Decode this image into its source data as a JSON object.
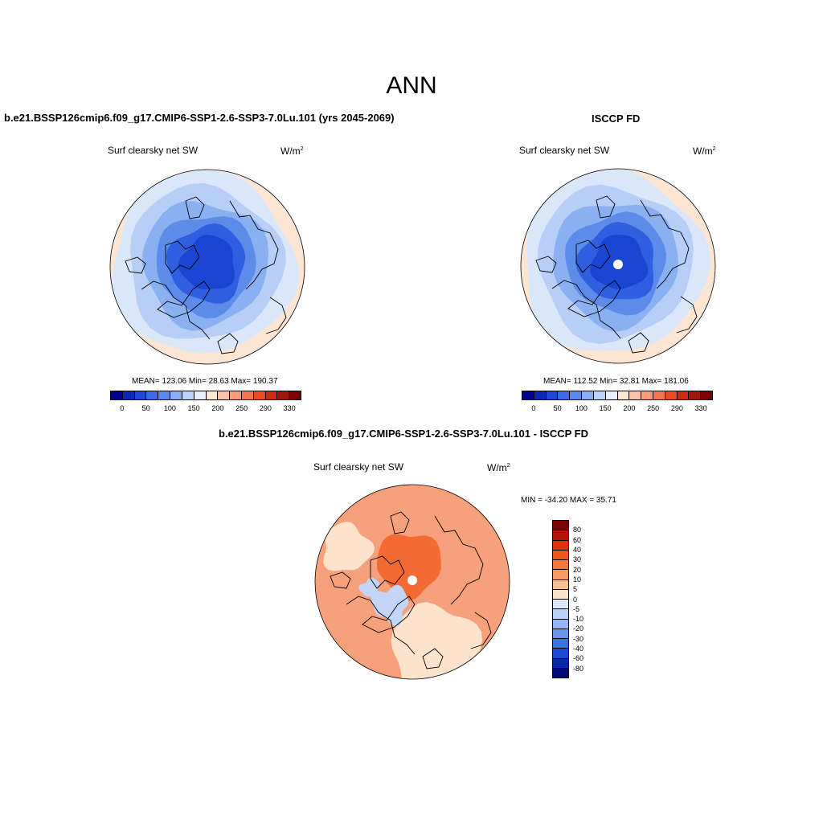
{
  "main_title": "ANN",
  "panels": [
    {
      "title": "b.e21.BSSP126cmip6.f09_g17.CMIP6-SSP1-2.6-SSP3-7.0Lu.101 (yrs 2045-2069)",
      "variable": "Surf clearsky net SW",
      "units": "W/m",
      "units_exp": "2",
      "stats": "MEAN= 123.06  Min=  28.63  Max= 190.37"
    },
    {
      "title": "ISCCP FD",
      "variable": "Surf clearsky net SW",
      "units": "W/m",
      "units_exp": "2",
      "stats": "MEAN= 112.52  Min=  32.81  Max= 181.06"
    },
    {
      "title": "b.e21.BSSP126cmip6.f09_g17.CMIP6-SSP1-2.6-SSP3-7.0Lu.101 - ISCCP FD",
      "variable": "Surf clearsky net SW",
      "units": "W/m",
      "units_exp": "2",
      "stats": "MIN = -34.20 MAX =  35.71"
    }
  ],
  "colorbar_abs": {
    "colors": [
      "#00008f",
      "#0a28b5",
      "#1e48d8",
      "#3c6ae8",
      "#5a8af0",
      "#8aaef6",
      "#bcd3fa",
      "#e6f0fd",
      "#fde8d8",
      "#fcc3a3",
      "#fa9c78",
      "#f57550",
      "#ea4a25",
      "#cd2a10",
      "#a3170a",
      "#7a0404"
    ],
    "tick_labels": [
      "0",
      "50",
      "100",
      "150",
      "200",
      "250",
      "290",
      "330"
    ]
  },
  "colorbar_diff": {
    "colors": [
      "#7a0404",
      "#b31407",
      "#dd3210",
      "#f0551e",
      "#f6783c",
      "#f89a62",
      "#fbbf92",
      "#fde2cc",
      "#dde9fb",
      "#bad0f8",
      "#95b5f3",
      "#6a94ec",
      "#3f6fe2",
      "#1d49cf",
      "#0a26ad",
      "#020a7a"
    ],
    "tick_labels": [
      "80",
      "60",
      "40",
      "30",
      "20",
      "10",
      "5",
      "0",
      "-5",
      "-10",
      "-20",
      "-30",
      "-40",
      "-60",
      "-80"
    ]
  },
  "map_fill": {
    "abs_bands": [
      "#fde5d4",
      "#dae7fb",
      "#b7cef7",
      "#8ab0f2",
      "#5d8bea",
      "#2f5fe0",
      "#1a44d2"
    ],
    "diff_base": "#f7a17c",
    "diff_inner": "#f36a33",
    "diff_light": "#fde2cc",
    "diff_blue": "#c3d6f8"
  }
}
